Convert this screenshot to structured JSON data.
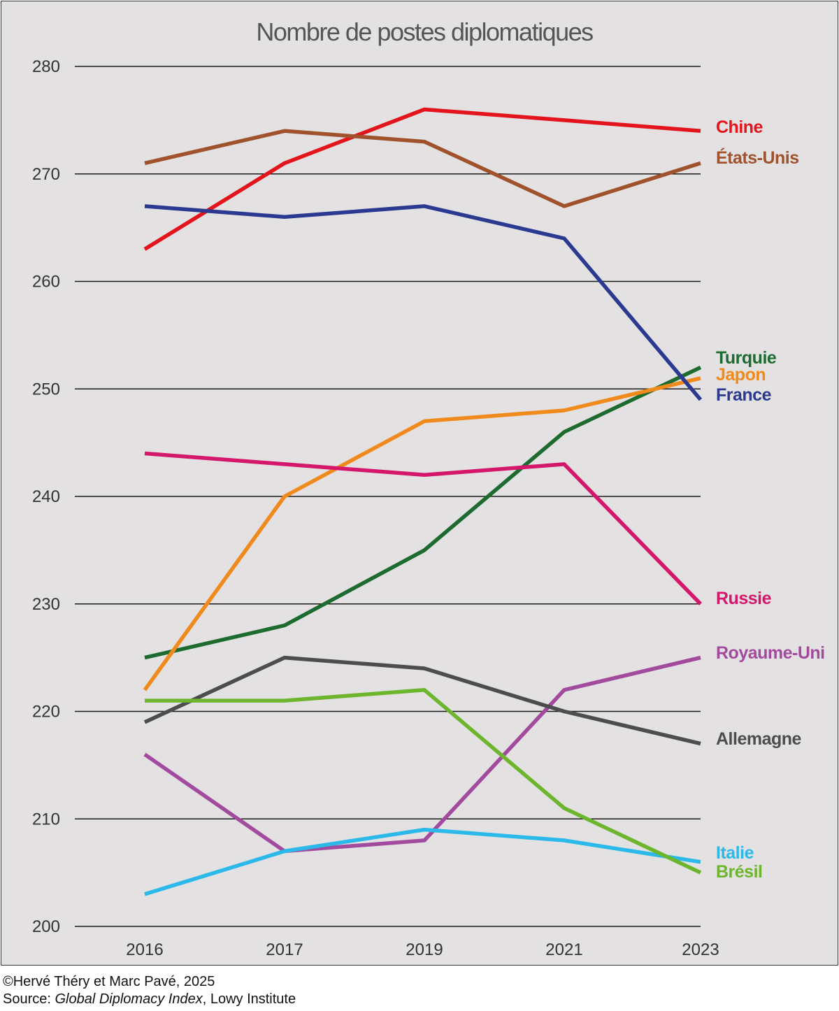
{
  "chart_data": {
    "type": "line",
    "title": "Nombre de postes diplomatiques",
    "categories": [
      "2016",
      "2017",
      "2019",
      "2021",
      "2023"
    ],
    "ylim": [
      200,
      280
    ],
    "yticks": [
      200,
      210,
      220,
      230,
      240,
      250,
      260,
      270,
      280
    ],
    "grid": "horizontal",
    "legend": "right (labels at line ends)",
    "series": [
      {
        "name": "Chine",
        "color": "#e3141b",
        "values": [
          263,
          271,
          276,
          275,
          274
        ]
      },
      {
        "name": "États-Unis",
        "color": "#a0522d",
        "values": [
          271,
          274,
          273,
          267,
          271
        ]
      },
      {
        "name": "Turquie",
        "color": "#1e6b30",
        "values": [
          225,
          228,
          235,
          246,
          252
        ]
      },
      {
        "name": "Japon",
        "color": "#f08a1c",
        "values": [
          222,
          240,
          247,
          248,
          251
        ]
      },
      {
        "name": "France",
        "color": "#2b3990",
        "values": [
          267,
          266,
          267,
          264,
          249
        ]
      },
      {
        "name": "Russie",
        "color": "#d4176b",
        "values": [
          244,
          243,
          242,
          243,
          230
        ]
      },
      {
        "name": "Royaume-Uni",
        "color": "#a24a9e",
        "values": [
          216,
          207,
          208,
          222,
          225
        ]
      },
      {
        "name": "Allemagne",
        "color": "#4d4d4d",
        "values": [
          219,
          225,
          224,
          220,
          217
        ]
      },
      {
        "name": "Italie",
        "color": "#2bb9ea",
        "values": [
          203,
          207,
          209,
          208,
          206
        ]
      },
      {
        "name": "Brésil",
        "color": "#6cb52d",
        "values": [
          221,
          221,
          222,
          211,
          205
        ]
      }
    ]
  },
  "credits": {
    "copyright": "©Hervé Théry et Marc Pavé, 2025",
    "source_prefix": "Source: ",
    "source_title": "Global Diplomacy Index",
    "source_suffix": ", Lowy Institute"
  }
}
